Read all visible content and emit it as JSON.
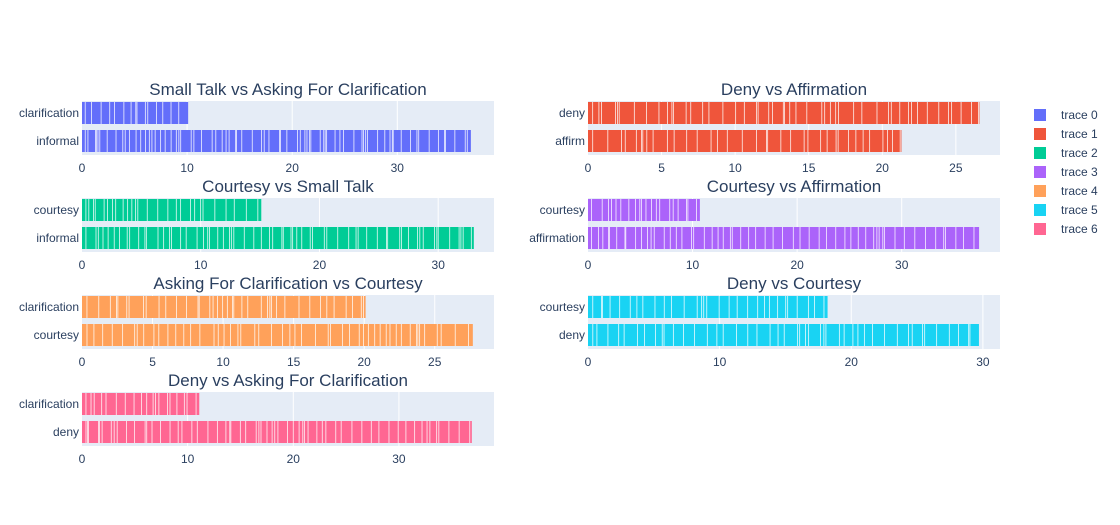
{
  "chart_data": {
    "type": "bar",
    "orientation": "horizontal",
    "grid": true,
    "legend_placement": "right",
    "legend": [
      {
        "name": "trace 0",
        "color": "#636efa"
      },
      {
        "name": "trace 1",
        "color": "#ef553b"
      },
      {
        "name": "trace 2",
        "color": "#00cc96"
      },
      {
        "name": "trace 3",
        "color": "#ab63fa"
      },
      {
        "name": "trace 4",
        "color": "#ffa15a"
      },
      {
        "name": "trace 5",
        "color": "#19d3f3"
      },
      {
        "name": "trace 6",
        "color": "#ff6692"
      }
    ],
    "subplots": [
      {
        "title": "Small Talk vs Asking For Clarification",
        "trace": "trace 0",
        "color": "#636efa",
        "categories": [
          "clarification",
          "informal"
        ],
        "values": [
          10.1,
          37.0
        ],
        "xlim": [
          0,
          39.2
        ],
        "xticks": [
          0,
          10,
          20,
          30
        ]
      },
      {
        "title": "Deny vs Affirmation",
        "trace": "trace 1",
        "color": "#ef553b",
        "categories": [
          "deny",
          "affirm"
        ],
        "values": [
          26.6,
          21.3
        ],
        "xlim": [
          0,
          28.0
        ],
        "xticks": [
          0,
          5,
          10,
          15,
          20,
          25
        ]
      },
      {
        "title": "Courtesy vs Small Talk",
        "trace": "trace 2",
        "color": "#00cc96",
        "categories": [
          "courtesy",
          "informal"
        ],
        "values": [
          15.1,
          33.0
        ],
        "xlim": [
          0,
          34.7
        ],
        "xticks": [
          0,
          10,
          20,
          30
        ]
      },
      {
        "title": "Courtesy vs Affirmation",
        "trace": "trace 3",
        "color": "#ab63fa",
        "categories": [
          "courtesy",
          "affirmation"
        ],
        "values": [
          10.7,
          37.4
        ],
        "xlim": [
          0,
          39.4
        ],
        "xticks": [
          0,
          10,
          20,
          30
        ]
      },
      {
        "title": "Asking For Clarification vs Courtesy",
        "trace": "trace 4",
        "color": "#ffa15a",
        "categories": [
          "clarification",
          "courtesy"
        ],
        "values": [
          20.1,
          27.7
        ],
        "xlim": [
          0,
          29.2
        ],
        "xticks": [
          0,
          5,
          10,
          15,
          20,
          25
        ]
      },
      {
        "title": "Deny vs Courtesy",
        "trace": "trace 5",
        "color": "#19d3f3",
        "categories": [
          "courtesy",
          "deny"
        ],
        "values": [
          18.2,
          29.7
        ],
        "xlim": [
          0,
          31.3
        ],
        "xticks": [
          0,
          10,
          20,
          30
        ]
      },
      {
        "title": "Deny vs Asking For Clarification",
        "trace": "trace 6",
        "color": "#ff6692",
        "categories": [
          "clarification",
          "deny"
        ],
        "values": [
          11.1,
          36.9
        ],
        "xlim": [
          0,
          39.0
        ],
        "xticks": [
          0,
          10,
          20,
          30
        ]
      }
    ]
  }
}
